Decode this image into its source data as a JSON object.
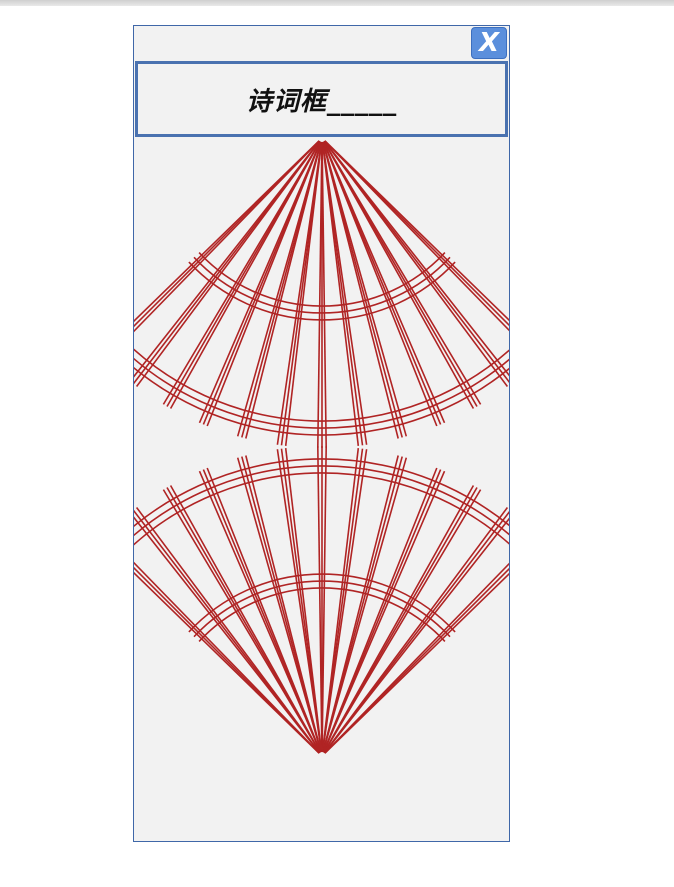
{
  "dialog": {
    "close_label": "X"
  },
  "poem_box": {
    "text": "诗词框_____"
  },
  "colors": {
    "panel_background": "#f2f2f2",
    "panel_border": "#3f67a8",
    "close_button": "#5b8fdc",
    "fan_lines": "#b02424"
  },
  "decoration": {
    "top_fan": "fan-pattern-pointing-up",
    "bottom_fan": "fan-pattern-pointing-down"
  }
}
